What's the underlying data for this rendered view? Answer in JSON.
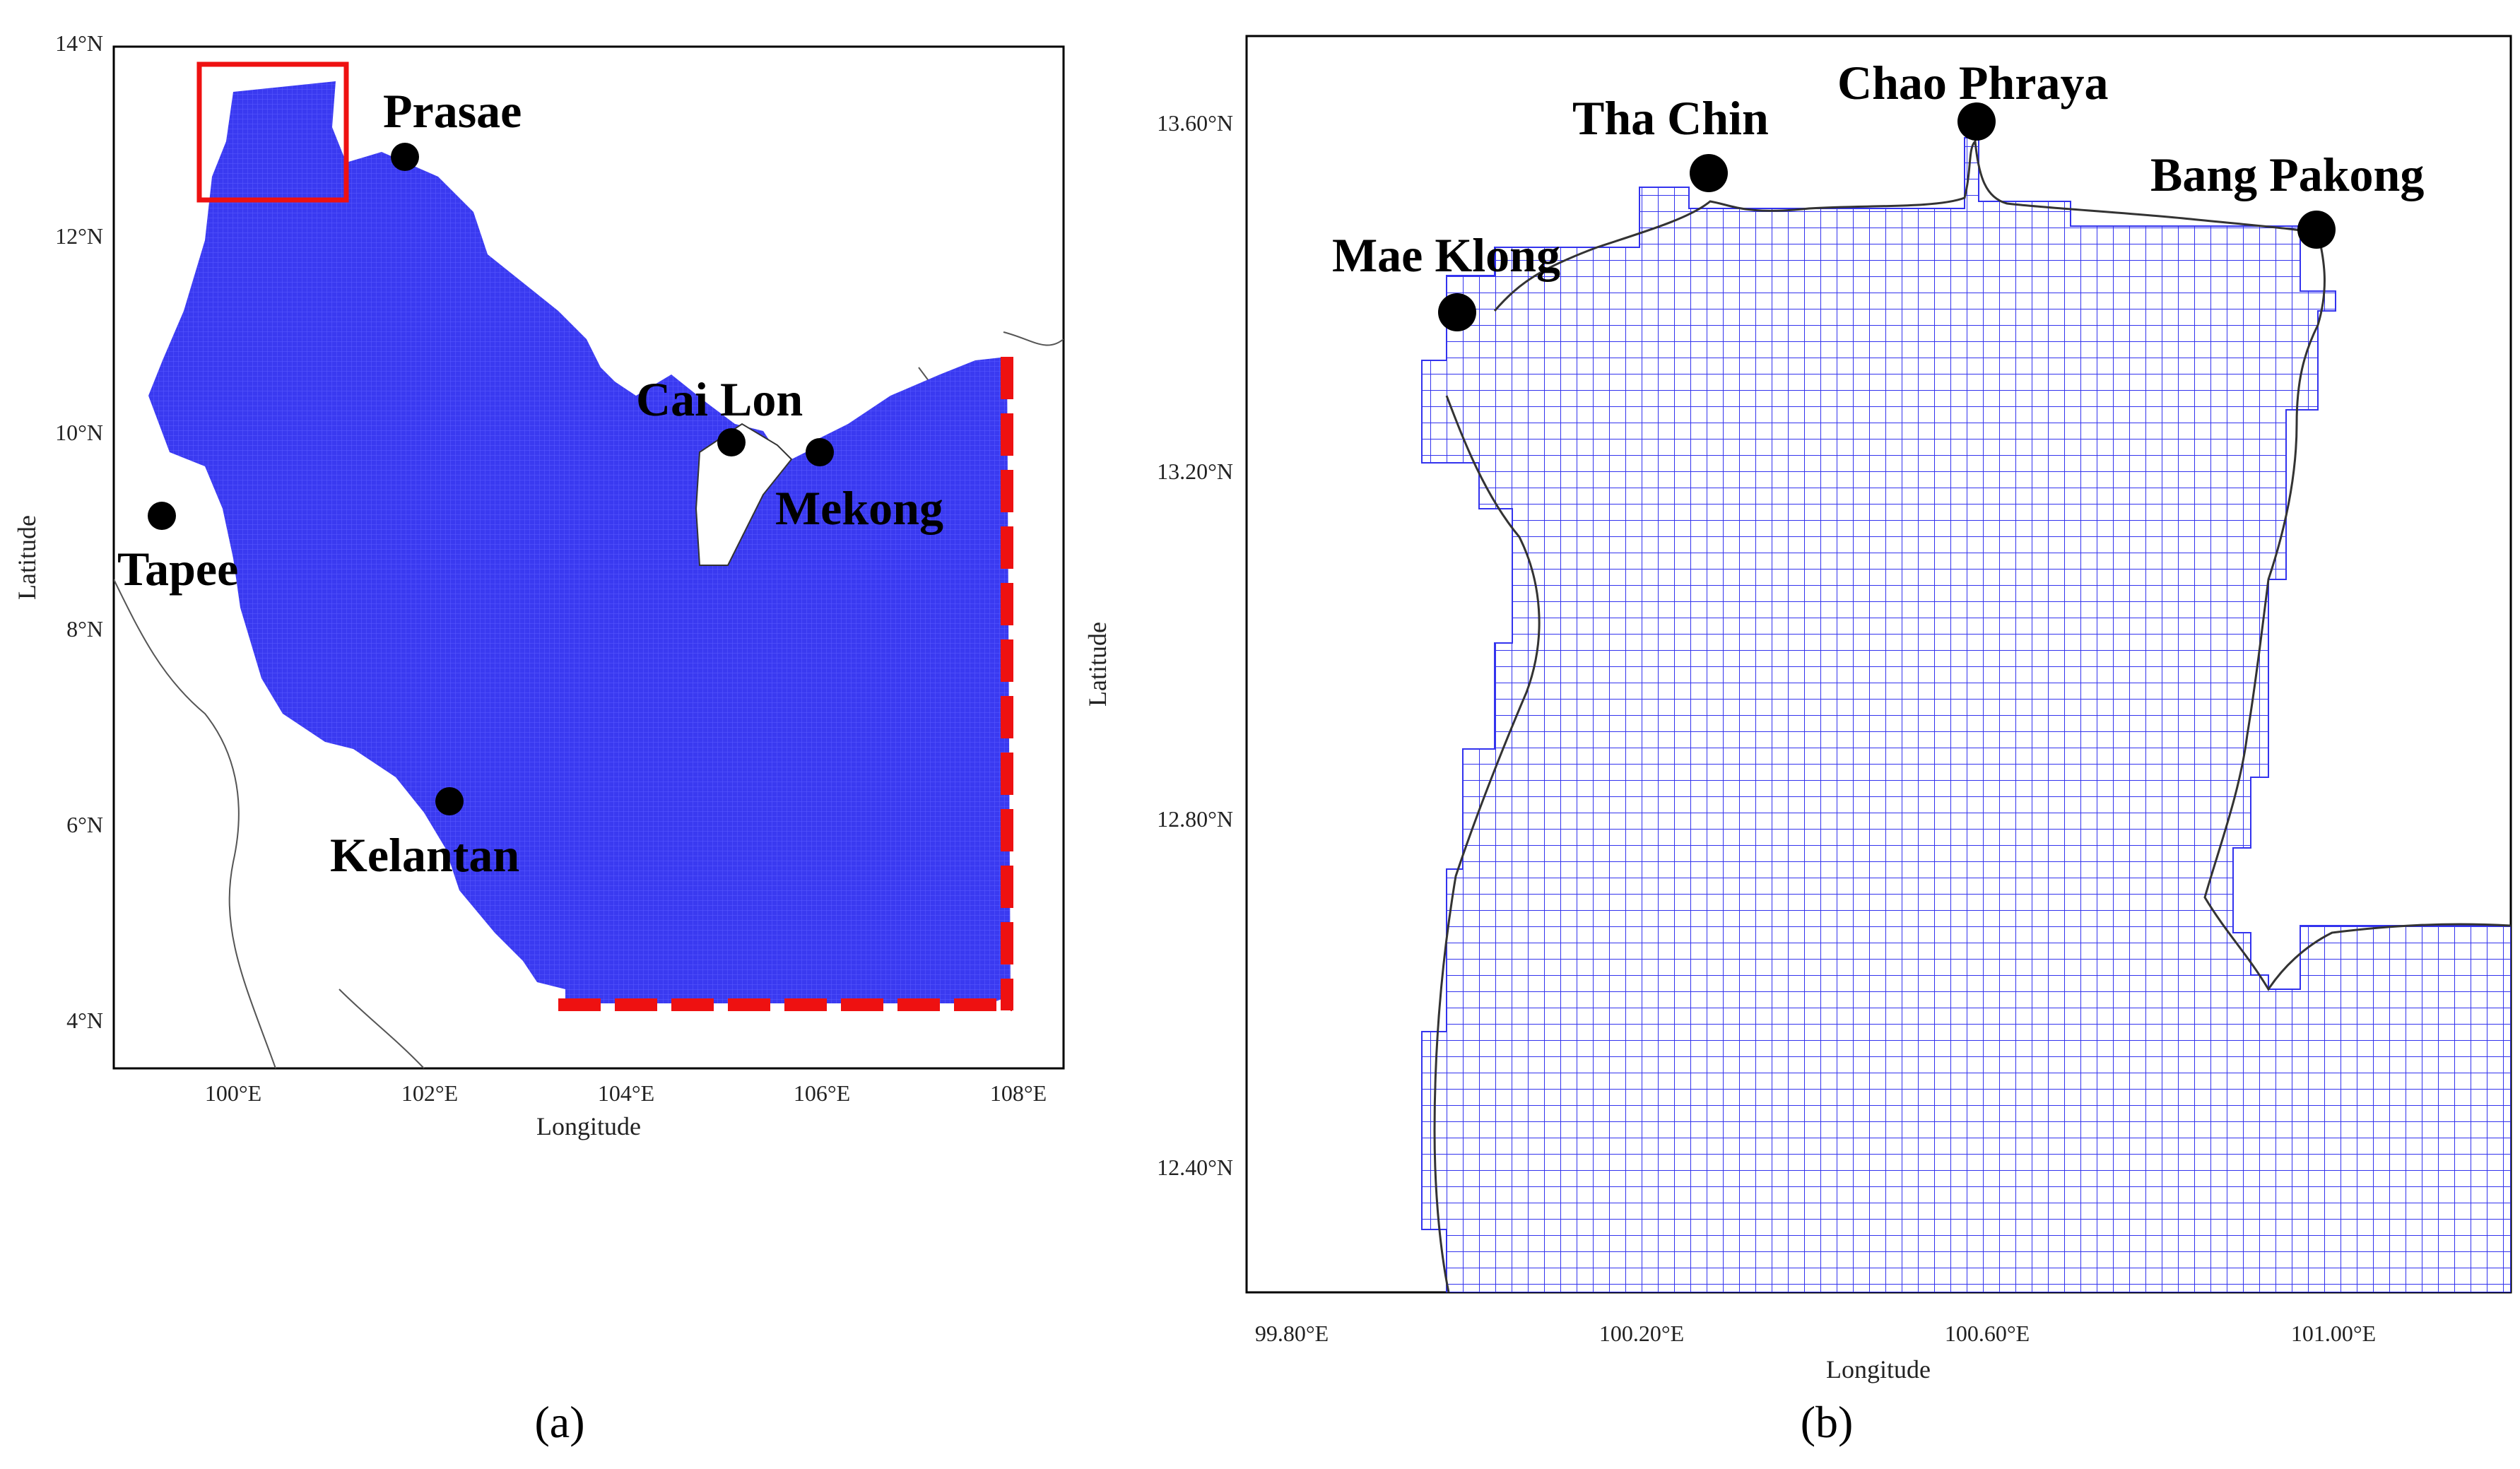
{
  "panel_a": {
    "caption": "(a)",
    "xlabel": "Longitude",
    "ylabel": "Latitude",
    "xticks": [
      "100°E",
      "102°E",
      "104°E",
      "106°E",
      "108°E"
    ],
    "yticks": [
      "14°N",
      "12°N",
      "10°N",
      "8°N",
      "6°N",
      "4°N"
    ],
    "places": [
      {
        "name": "Prasae",
        "lon": 101.8,
        "lat": 12.8
      },
      {
        "name": "Cai Lon",
        "lon": 105.1,
        "lat": 9.9
      },
      {
        "name": "Mekong",
        "lon": 106.0,
        "lat": 9.8
      },
      {
        "name": "Tapee",
        "lon": 99.3,
        "lat": 9.15
      },
      {
        "name": "Kelantan",
        "lon": 102.25,
        "lat": 6.2
      }
    ],
    "colors": {
      "water": "#3a3af0",
      "boundary": "#ee1111",
      "coast": "#333333"
    }
  },
  "panel_b": {
    "caption": "(b)",
    "xlabel": "Longitude",
    "ylabel": "Latitude",
    "xticks": [
      "99.80°E",
      "100.20°E",
      "100.60°E",
      "101.00°E"
    ],
    "yticks": [
      "13.60°N",
      "13.20°N",
      "12.80°N",
      "12.40°N"
    ],
    "places": [
      {
        "name": "Mae Klong",
        "lon": 99.99,
        "lat": 13.38
      },
      {
        "name": "Tha Chin",
        "lon": 100.27,
        "lat": 13.54
      },
      {
        "name": "Chao Phraya",
        "lon": 100.58,
        "lat": 13.6
      },
      {
        "name": "Bang Pakong",
        "lon": 100.98,
        "lat": 13.48
      }
    ],
    "colors": {
      "grid": "#3333ee",
      "coast": "#333333"
    }
  }
}
